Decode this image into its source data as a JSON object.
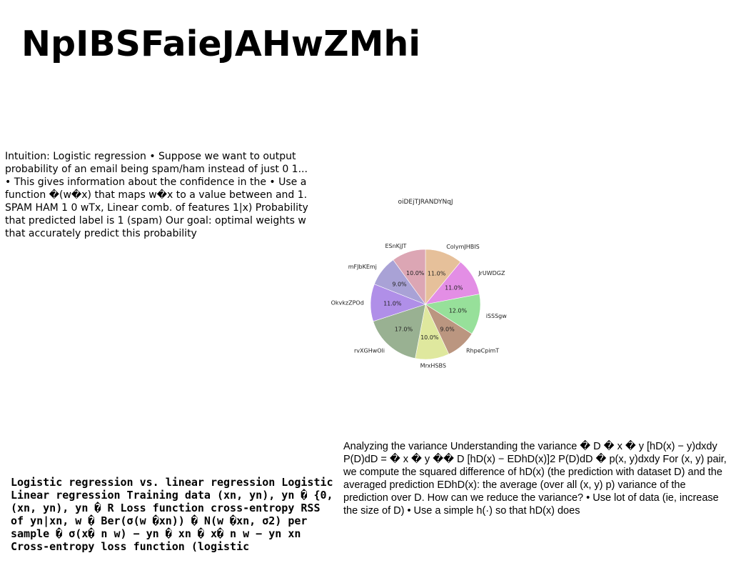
{
  "slide": {
    "title": "NpIBSFaieJAHwZMhi",
    "intro_text": "Intuition: Logistic regression • Suppose we want to output probability of an email being spam/ham instead of just 0 1... • This gives information about the confidence in the • Use a function �(w�x) that maps w�x to a value between and 1. SPAM HAM 1 0 wTx, Linear comb. of features 1|x) Probability that predicted label is 1 (spam) Our goal: optimal weights w that accurately predict this probability",
    "comparison_text": "Logistic regression vs. linear regression Logistic Linear regression Training data (xn, yn), yn � {0, (xn, yn), yn � R Loss function cross-entropy RSS of yn|xn, w � Ber(σ(w �xn)) � N(w �xn, σ2) per sample � σ(x� n w) − yn � xn � x� n w − yn xn Cross-entropy loss function (logistic",
    "variance_text": "Analyzing the variance Understanding the variance � D � x � y [hD(x) − y)dxdy P(D)dD = � x � y �� D [hD(x) − EDhD(x)]2 P(D)dD � p(x, y)dxdy For (x, y) pair, we compute the squared difference of hD(x) (the prediction with dataset D) and the averaged prediction EDhD(x): the average (over all (x, y) p) variance of the prediction over D. How can we reduce the variance? • Use lot of data (ie, increase the size of D) • Use a simple h(·) so that hD(x) does"
  },
  "chart_data": {
    "type": "pie",
    "title": "oiDEjTJRANDYNqJ",
    "start_angle_deg": 90,
    "direction": "clockwise",
    "slices": [
      {
        "label": "ColymJHBIS",
        "value": 11.0,
        "pct_label": "11.0%",
        "color": "#e6c09a"
      },
      {
        "label": "JrUWDGZ",
        "value": 11.0,
        "pct_label": "11.0%",
        "color": "#e38ee5"
      },
      {
        "label": "iSSSgw",
        "value": 12.0,
        "pct_label": "12.0%",
        "color": "#97e09a"
      },
      {
        "label": "RhpeCpimT",
        "value": 9.0,
        "pct_label": "9.0%",
        "color": "#bb9680"
      },
      {
        "label": "MrxHSBS",
        "value": 10.0,
        "pct_label": "10.0%",
        "color": "#dfe89e"
      },
      {
        "label": "rvXGHwOli",
        "value": 17.0,
        "pct_label": "17.0%",
        "color": "#99b192"
      },
      {
        "label": "OkvkzZPOd",
        "value": 11.0,
        "pct_label": "11.0%",
        "color": "#b08fe8"
      },
      {
        "label": "mFJbKEmj",
        "value": 9.0,
        "pct_label": "9.0%",
        "color": "#a9a2d6"
      },
      {
        "label": "ESnKjJT",
        "value": 10.0,
        "pct_label": "10.0%",
        "color": "#dca6b4"
      }
    ]
  }
}
